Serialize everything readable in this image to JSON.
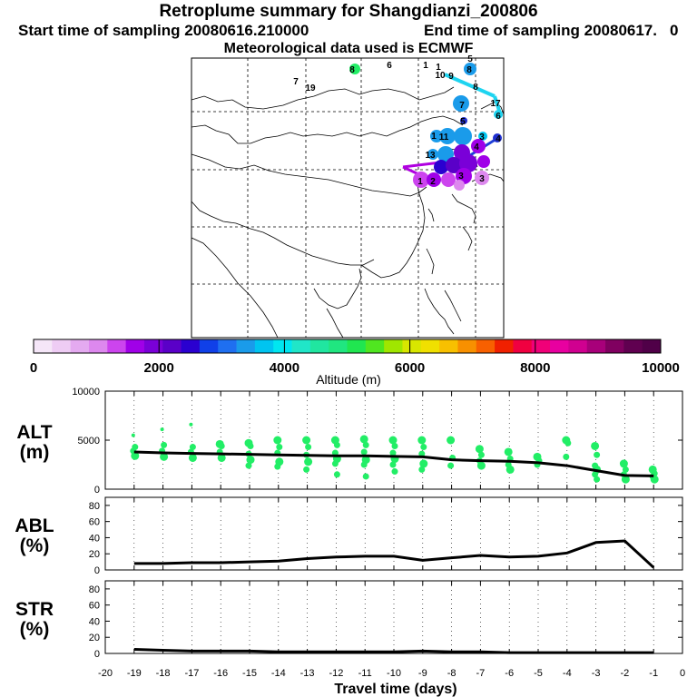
{
  "header": {
    "title": "Retroplume summary for Shangdianzi_200806",
    "start_label": "Start time of sampling 20080616.210000",
    "end_label": "End time of sampling 20080617.",
    "end_suffix": "0",
    "met_label": "Meteorological data used is ECMWF"
  },
  "map_labels": [
    {
      "text": "8",
      "color": "#22ee66"
    },
    {
      "text": "6",
      "color": "#22ccaa"
    },
    {
      "text": "7",
      "color": "#22ccaa"
    },
    {
      "text": "19",
      "color": "#22ccaa"
    },
    {
      "text": "1",
      "color": "#00ccee"
    },
    {
      "text": "1",
      "color": "#00ccee"
    },
    {
      "text": "10",
      "color": "#00ccee"
    },
    {
      "text": "9",
      "color": "#00ccee"
    },
    {
      "text": "8",
      "color": "#00ccee"
    },
    {
      "text": "5",
      "color": "#00ccee"
    },
    {
      "text": "8",
      "color": "#1a9bea"
    },
    {
      "text": "7",
      "color": "#1a9bea"
    },
    {
      "text": "17",
      "color": "#00ccee"
    },
    {
      "text": "6",
      "color": "#00ccee"
    },
    {
      "text": "5",
      "color": "#2030d0"
    },
    {
      "text": "3",
      "color": "#00ccee"
    },
    {
      "text": "4",
      "color": "#2030d0"
    },
    {
      "text": "1",
      "color": "#1a9bea"
    },
    {
      "text": "11",
      "color": "#1a9bea"
    },
    {
      "text": "13",
      "color": "#1a9bea"
    },
    {
      "text": "4",
      "color": "#9900dd"
    },
    {
      "text": "3",
      "color": "#9900dd"
    },
    {
      "text": "3",
      "color": "#dd66ee"
    },
    {
      "text": "1",
      "color": "#9900dd"
    },
    {
      "text": "2",
      "color": "#9900dd"
    }
  ],
  "colorbar": {
    "ticks": [
      "0",
      "2000",
      "4000",
      "6000",
      "8000",
      "10000"
    ],
    "label": "Altitude (m)",
    "colors": [
      "#f5e6f8",
      "#eeccf4",
      "#e4aaf0",
      "#dd88ee",
      "#cc44ee",
      "#a000e8",
      "#7a00d8",
      "#5a00c8",
      "#2a00d0",
      "#1040e8",
      "#1f6ff0",
      "#1a9bea",
      "#00c4f0",
      "#00e6f0",
      "#20e6c8",
      "#20e6a0",
      "#20e680",
      "#20e650",
      "#50e620",
      "#a0e600",
      "#d8e600",
      "#f0e000",
      "#f8c000",
      "#f89000",
      "#f86000",
      "#f02000",
      "#f00040",
      "#f00078",
      "#e800a0",
      "#d00090",
      "#a8007a",
      "#800060",
      "#600050",
      "#500048"
    ]
  },
  "chart_data": [
    {
      "name": "ALT",
      "type": "line+scatter",
      "ylabel": "ALT (m)",
      "ylabel_top": "ALT",
      "ylabel_bottom": "(m)",
      "ylim": [
        0,
        10000
      ],
      "yticks": [
        "0",
        "5000",
        "10000"
      ],
      "x": [
        -19,
        -18,
        -17,
        -16,
        -15,
        -14,
        -13,
        -12,
        -11,
        -10,
        -9,
        -8,
        -7,
        -6,
        -5,
        -4,
        -3,
        -2,
        -1
      ],
      "median": [
        3800,
        3700,
        3650,
        3600,
        3550,
        3500,
        3450,
        3400,
        3400,
        3350,
        3300,
        3000,
        2900,
        2850,
        2700,
        2400,
        1900,
        1400,
        1350
      ],
      "scatter": [
        {
          "x": -19,
          "y": [
            5500,
            4300,
            3900,
            3400
          ]
        },
        {
          "x": -18,
          "y": [
            6100,
            4500,
            3900,
            3300
          ]
        },
        {
          "x": -17,
          "y": [
            6600,
            4300,
            3800,
            3200
          ]
        },
        {
          "x": -16,
          "y": [
            4600,
            4400,
            3800,
            3200
          ]
        },
        {
          "x": -15,
          "y": [
            4700,
            4400,
            3600,
            3000,
            2400
          ]
        },
        {
          "x": -14,
          "y": [
            5000,
            4300,
            3700,
            2800,
            2300
          ]
        },
        {
          "x": -13,
          "y": [
            5000,
            4300,
            3500,
            2800,
            2000
          ]
        },
        {
          "x": -12,
          "y": [
            5000,
            4500,
            3700,
            3100,
            2600,
            1500
          ]
        },
        {
          "x": -11,
          "y": [
            5100,
            4500,
            3800,
            3000,
            2500,
            1300
          ]
        },
        {
          "x": -10,
          "y": [
            5000,
            4400,
            3700,
            3100,
            2500,
            1800
          ]
        },
        {
          "x": -9,
          "y": [
            5000,
            4300,
            3600,
            2600,
            2000
          ]
        },
        {
          "x": -8,
          "y": [
            5000,
            3200,
            2400
          ]
        },
        {
          "x": -7,
          "y": [
            4100,
            3500,
            2900,
            2400
          ]
        },
        {
          "x": -6,
          "y": [
            3800,
            3100,
            2500,
            2000
          ]
        },
        {
          "x": -5,
          "y": [
            3300,
            2900,
            2500
          ]
        },
        {
          "x": -4,
          "y": [
            5000,
            4700,
            3300
          ]
        },
        {
          "x": -3,
          "y": [
            4400,
            3500,
            2400,
            2000,
            1500,
            1000
          ]
        },
        {
          "x": -2,
          "y": [
            2600,
            2000,
            1500,
            1000
          ]
        },
        {
          "x": -1,
          "y": [
            2000,
            1600,
            1300,
            1000
          ]
        }
      ]
    },
    {
      "name": "ABL",
      "type": "line",
      "ylabel": "ABL (%)",
      "ylabel_top": "ABL",
      "ylabel_bottom": "(%)",
      "ylim": [
        0,
        90
      ],
      "yticks": [
        "0",
        "20",
        "40",
        "60",
        "80"
      ],
      "x": [
        -19,
        -18,
        -17,
        -16,
        -15,
        -14,
        -13,
        -12,
        -11,
        -10,
        -9,
        -8,
        -7,
        -6,
        -5,
        -4,
        -3,
        -2,
        -1
      ],
      "values": [
        8,
        8,
        9,
        9,
        10,
        11,
        14,
        16,
        17,
        17,
        12,
        15,
        18,
        16,
        17,
        21,
        34,
        36,
        3
      ]
    },
    {
      "name": "STR",
      "type": "line",
      "ylabel": "STR (%)",
      "ylabel_top": "STR",
      "ylabel_bottom": "(%)",
      "ylim": [
        0,
        90
      ],
      "yticks": [
        "0",
        "20",
        "40",
        "60",
        "80"
      ],
      "x": [
        -19,
        -18,
        -17,
        -16,
        -15,
        -14,
        -13,
        -12,
        -11,
        -10,
        -9,
        -8,
        -7,
        -6,
        -5,
        -4,
        -3,
        -2,
        -1
      ],
      "values": [
        5,
        4,
        3,
        3,
        3,
        2,
        2,
        2,
        2,
        2,
        3,
        2,
        2,
        1,
        1,
        1,
        1,
        1,
        1
      ]
    }
  ],
  "xaxis": {
    "ticks": [
      "-20",
      "-19",
      "-18",
      "-17",
      "-16",
      "-15",
      "-14",
      "-13",
      "-12",
      "-11",
      "-10",
      "-9",
      "-8",
      "-7",
      "-6",
      "-5",
      "-4",
      "-3",
      "-2",
      "-1",
      "0"
    ],
    "label": "Travel time (days)",
    "xlim": [
      -20,
      0
    ]
  }
}
